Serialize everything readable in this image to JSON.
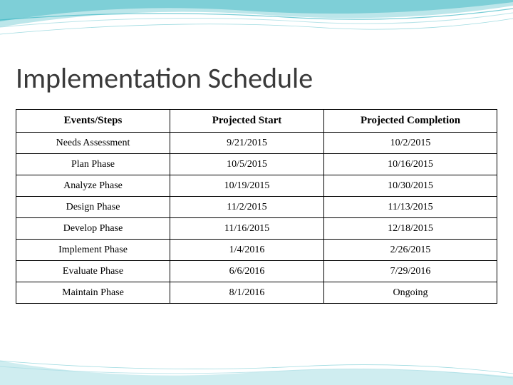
{
  "title": "Implementation Schedule",
  "table": {
    "columns": [
      "Events/Steps",
      "Projected Start",
      "Projected Completion"
    ],
    "rows": [
      [
        "Needs Assessment",
        "9/21/2015",
        "10/2/2015"
      ],
      [
        "Plan Phase",
        "10/5/2015",
        "10/16/2015"
      ],
      [
        "Analyze Phase",
        "10/19/2015",
        "10/30/2015"
      ],
      [
        "Design Phase",
        "11/2/2015",
        "11/13/2015"
      ],
      [
        "Develop Phase",
        "11/16/2015",
        "12/18/2015"
      ],
      [
        "Implement Phase",
        "1/4/2016",
        "2/26/2015"
      ],
      [
        "Evaluate Phase",
        "6/6/2016",
        "7/29/2016"
      ],
      [
        "Maintain Phase",
        "8/1/2016",
        "Ongoing"
      ]
    ],
    "column_widths_pct": [
      32,
      32,
      36
    ],
    "header_fontsize": 15,
    "cell_fontsize": 14,
    "border_color": "#000000",
    "background_color": "#ffffff"
  },
  "decoration": {
    "accent_teal": "#3fb8c4",
    "accent_light": "#a8dde4",
    "title_color": "#3a3a3a"
  }
}
